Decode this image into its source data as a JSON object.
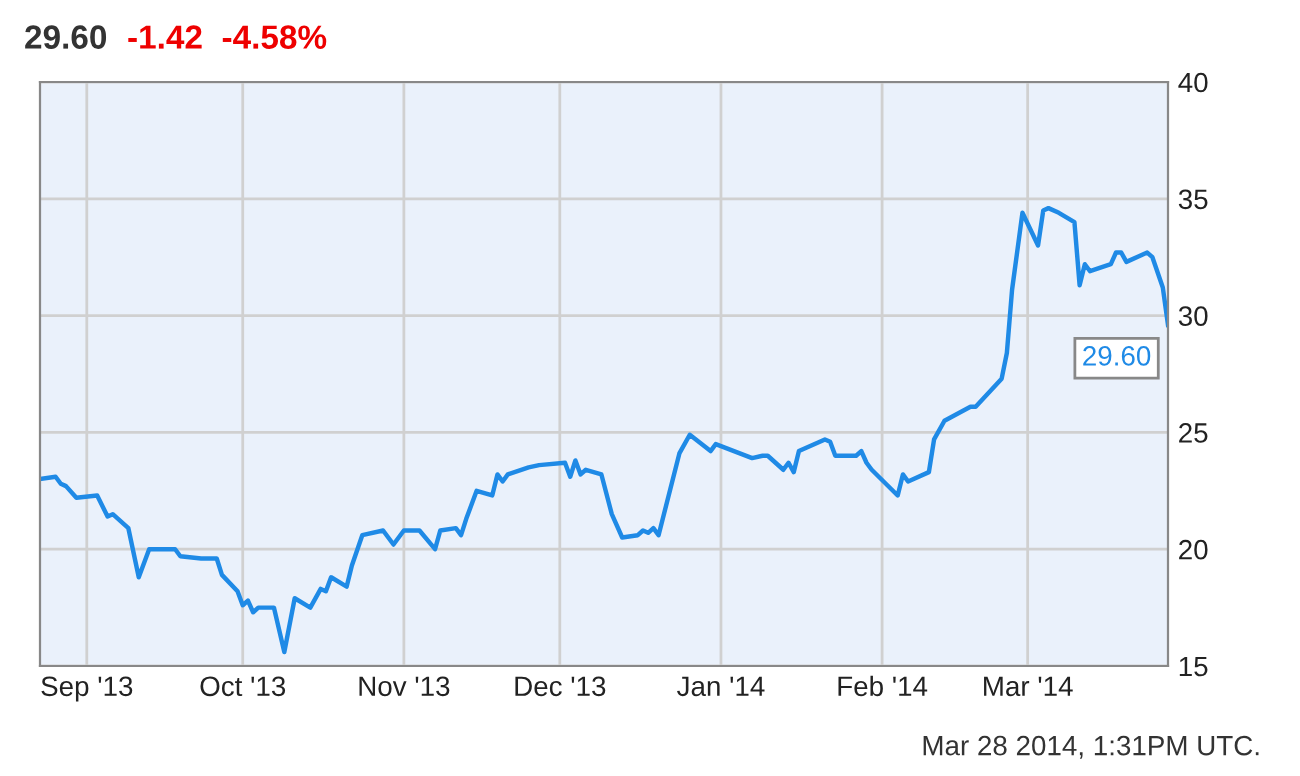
{
  "chart_data": {
    "type": "line",
    "title": "29.60",
    "subtitle": "-1.42  -4.58%",
    "x": [
      "2013-08-23",
      "2013-08-26",
      "2013-08-27",
      "2013-08-28",
      "2013-08-30",
      "2013-09-03",
      "2013-09-05",
      "2013-09-06",
      "2013-09-09",
      "2013-09-11",
      "2013-09-13",
      "2013-09-18",
      "2013-09-19",
      "2013-09-23",
      "2013-09-26",
      "2013-09-27",
      "2013-09-30",
      "2013-10-01",
      "2013-10-02",
      "2013-10-03",
      "2013-10-04",
      "2013-10-07",
      "2013-10-09",
      "2013-10-11",
      "2013-10-14",
      "2013-10-16",
      "2013-10-17",
      "2013-10-18",
      "2013-10-21",
      "2013-10-22",
      "2013-10-24",
      "2013-10-28",
      "2013-10-30",
      "2013-11-01",
      "2013-11-04",
      "2013-11-07",
      "2013-11-08",
      "2013-11-11",
      "2013-11-12",
      "2013-11-13",
      "2013-11-15",
      "2013-11-18",
      "2013-11-19",
      "2013-11-20",
      "2013-11-21",
      "2013-11-25",
      "2013-11-27",
      "2013-12-02",
      "2013-12-03",
      "2013-12-04",
      "2013-12-05",
      "2013-12-06",
      "2013-12-09",
      "2013-12-11",
      "2013-12-13",
      "2013-12-16",
      "2013-12-17",
      "2013-12-18",
      "2013-12-19",
      "2013-12-20",
      "2013-12-24",
      "2013-12-26",
      "2013-12-30",
      "2013-12-31",
      "2014-01-07",
      "2014-01-09",
      "2014-01-10",
      "2014-01-13",
      "2014-01-14",
      "2014-01-15",
      "2014-01-16",
      "2014-01-21",
      "2014-01-22",
      "2014-01-23",
      "2014-01-27",
      "2014-01-28",
      "2014-01-29",
      "2014-01-30",
      "2014-02-04",
      "2014-02-05",
      "2014-02-06",
      "2014-02-10",
      "2014-02-11",
      "2014-02-13",
      "2014-02-18",
      "2014-02-19",
      "2014-02-24",
      "2014-02-25",
      "2014-02-26",
      "2014-02-28",
      "2014-03-03",
      "2014-03-04",
      "2014-03-05",
      "2014-03-07",
      "2014-03-10",
      "2014-03-11",
      "2014-03-12",
      "2014-03-13",
      "2014-03-17",
      "2014-03-18",
      "2014-03-19",
      "2014-03-20",
      "2014-03-24",
      "2014-03-25",
      "2014-03-27",
      "2014-03-28"
    ],
    "series": [
      {
        "color": "#1f8ae6",
        "values": [
          23.0,
          23.1,
          22.8,
          22.7,
          22.2,
          22.3,
          21.4,
          21.5,
          20.9,
          18.8,
          20.0,
          20.0,
          19.7,
          19.6,
          19.6,
          18.9,
          18.2,
          17.6,
          17.8,
          17.3,
          17.5,
          17.5,
          15.6,
          17.9,
          17.5,
          18.3,
          18.2,
          18.8,
          18.4,
          19.3,
          20.6,
          20.8,
          20.2,
          20.8,
          20.8,
          20.0,
          20.8,
          20.9,
          20.6,
          21.3,
          22.5,
          22.3,
          23.2,
          22.9,
          23.2,
          23.5,
          23.6,
          23.7,
          23.1,
          23.8,
          23.2,
          23.4,
          23.2,
          21.5,
          20.5,
          20.6,
          20.8,
          20.7,
          20.9,
          20.6,
          24.1,
          24.9,
          24.2,
          24.5,
          23.9,
          24.0,
          24.0,
          23.4,
          23.7,
          23.3,
          24.2,
          24.7,
          24.6,
          24.0,
          24.0,
          24.2,
          23.7,
          23.4,
          22.3,
          23.2,
          22.9,
          23.3,
          24.7,
          25.5,
          26.1,
          26.1,
          27.3,
          28.4,
          31.1,
          34.4,
          33.0,
          34.5,
          34.6,
          34.4,
          34.0,
          31.3,
          32.2,
          31.9,
          32.2,
          32.7,
          32.7,
          32.3,
          32.7,
          32.5,
          31.2,
          29.6
        ]
      }
    ],
    "xlim": [
      "2013-08-23",
      "2014-03-28"
    ],
    "xticks": [
      {
        "value": "2013-09-01",
        "label": "Sep '13"
      },
      {
        "value": "2013-10-01",
        "label": "Oct '13"
      },
      {
        "value": "2013-11-01",
        "label": "Nov '13"
      },
      {
        "value": "2013-12-01",
        "label": "Dec '13"
      },
      {
        "value": "2014-01-01",
        "label": "Jan '14"
      },
      {
        "value": "2014-02-01",
        "label": "Feb '14"
      },
      {
        "value": "2014-03-01",
        "label": "Mar '14"
      }
    ],
    "ylim": [
      15,
      40
    ],
    "yticks": [
      15,
      20,
      25,
      30,
      35,
      40
    ],
    "grid": true,
    "marker": "none",
    "line_style": "solid",
    "annotations": [
      {
        "text": "29.60",
        "x": "2014-03-28",
        "y": 29.6
      },
      "Mar 28 2014, 1:31PM UTC."
    ]
  }
}
